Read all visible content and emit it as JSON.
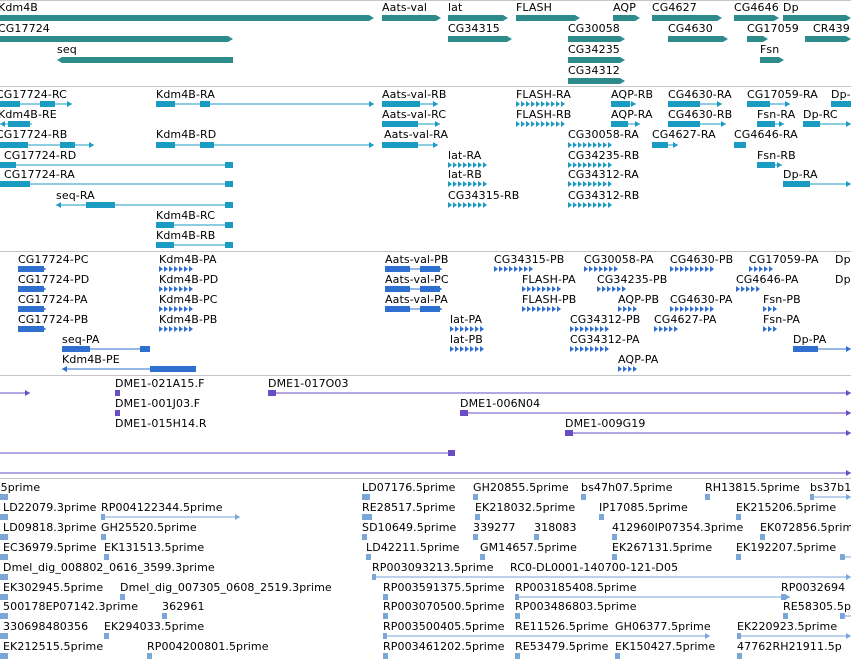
{
  "colors": {
    "gene": "#2e8b8b",
    "mrna": "#1a9bc2",
    "protein": "#2f6fd0",
    "clone": "#6a4cc4",
    "est": "#7aa6d8",
    "separator": "#c6c6c6"
  },
  "tracks": {
    "genes": [
      "Kdm4B",
      "Aats-val",
      "lat",
      "FLASH",
      "AQP",
      "CG4627",
      "CG4646",
      "Dp",
      "CG17724",
      "CG34315",
      "CG30058",
      "CG4630",
      "CG17059",
      "CR439",
      "seq",
      "CG34235",
      "Fsn",
      "CG34312"
    ],
    "transcripts": [
      "CG17724-RC",
      "Kdm4B-RA",
      "Aats-val-RB",
      "FLASH-RA",
      "AQP-RB",
      "CG4630-RA",
      "CG17059-RA",
      "Dp-",
      "Kdm4B-RE",
      "Aats-val-RC",
      "FLASH-RB",
      "AQP-RA",
      "CG4630-RB",
      "Fsn-RA",
      "Dp-RC",
      "CG17724-RB",
      "Kdm4B-RD",
      "Aats-val-RA",
      "CG30058-RA",
      "CG4627-RA",
      "CG4646-RA",
      "CG17724-RD",
      "lat-RA",
      "CG34235-RB",
      "Fsn-RB",
      "CG17724-RA",
      "lat-RB",
      "CG34312-RA",
      "Dp-RA",
      "seq-RA",
      "CG34315-RB",
      "CG34312-RB",
      "Kdm4B-RC",
      "Kdm4B-RB"
    ],
    "proteins": [
      "CG17724-PC",
      "Kdm4B-PA",
      "Aats-val-PB",
      "CG34315-PB",
      "CG30058-PA",
      "CG4630-PB",
      "CG17059-PA",
      "Dp",
      "CG17724-PD",
      "Kdm4B-PD",
      "Aats-val-PC",
      "FLASH-PA",
      "CG34235-PB",
      "CG4646-PA",
      "Dp",
      "CG17724-PA",
      "Kdm4B-PC",
      "Aats-val-PA",
      "FLASH-PB",
      "AQP-PB",
      "CG4630-PA",
      "Fsn-PB",
      "CG17724-PB",
      "Kdm4B-PB",
      "lat-PA",
      "CG34312-PB",
      "CG4627-PA",
      "Fsn-PA",
      "seq-PA",
      "lat-PB",
      "CG34312-PA",
      "Dp-PA",
      "Kdm4B-PE",
      "AQP-PA"
    ],
    "clones": [
      "DME1-021A15.F",
      "DME1-017O03",
      "DME1-001J03.F",
      "DME1-006N04",
      "DME1-015H14.R",
      "DME1-009G19"
    ],
    "ests": [
      ".5prime",
      "LD07176.5prime",
      "GH20855.5prime",
      "bs47h07.5prime",
      "RH13815.5prime",
      "bs37b1",
      "LD22079.3prime",
      "RP004122344.5prime",
      "RE28517.5prime",
      "EK218032.5prime",
      "IP17085.5prime",
      "EK215206.5prime",
      "LD09818.3prime",
      "GH25520.5prime",
      "SD10649.5prime",
      "339277",
      "318083",
      "412960IP07354.3prime",
      "EK072856.5prime",
      "EC36979.5prime",
      "EK131513.5prime",
      "LD42211.5prime",
      "GM14657.5prime",
      "EK267131.5prime",
      "EK192207.5prime",
      "Dmel_dig_008802_0616_3599.3prime",
      "RP003093213.5prime",
      "RC0-DL0001-140700-121-D05",
      "EK302945.5prime",
      "Dmel_dig_007305_0608_2519.3prime",
      "RP003591375.5prime",
      "RP003185408.5prime",
      "RP0032694",
      "500178EP07142.3prime",
      "362961",
      "RP003070500.5prime",
      "RP003486803.5prime",
      "RE58305.5prime",
      "330698480356",
      "EK294033.5prime",
      "RP003500405.5prime",
      "RE11526.5prime",
      "GH06377.5prime",
      "EK220923.5prime",
      "EK212515.5prime",
      "RP004200801.5prime",
      "RP003461202.5prime",
      "RE53479.5prime",
      "EK150427.5prime",
      "47762RH21911.5p"
    ]
  }
}
